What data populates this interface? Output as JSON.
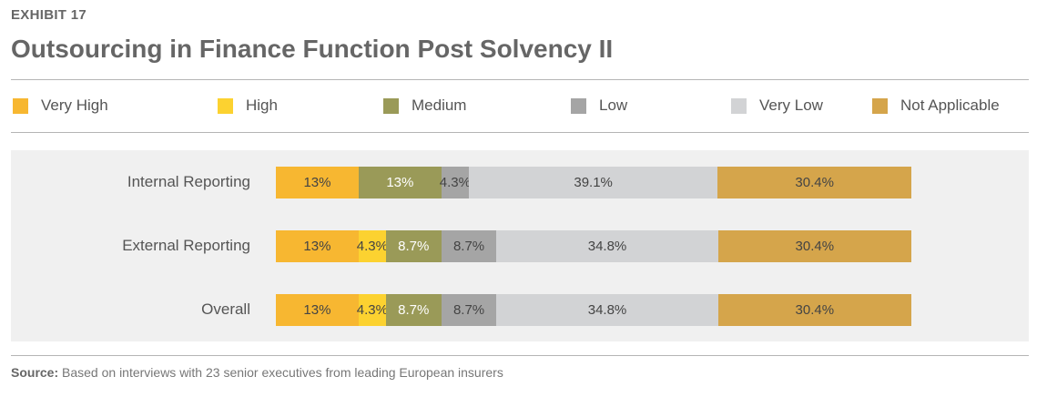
{
  "exhibit": "EXHIBIT 17",
  "chart_data": {
    "type": "bar",
    "orientation": "horizontal",
    "stacked": true,
    "title": "Outsourcing in Finance Function Post Solvency II",
    "categories": [
      "Internal Reporting",
      "External Reporting",
      "Overall"
    ],
    "series": [
      {
        "name": "Very High",
        "color": "#f7b731",
        "values": [
          13,
          13,
          13
        ],
        "labels": [
          "13%",
          "13%",
          "13%"
        ]
      },
      {
        "name": "High",
        "color": "#fcd230",
        "values": [
          0,
          4.3,
          4.3
        ],
        "labels": [
          "",
          "4.3%",
          "4.3%"
        ]
      },
      {
        "name": "Medium",
        "color": "#9a9a58",
        "values": [
          13,
          8.7,
          8.7
        ],
        "labels": [
          "13%",
          "8.7%",
          "8.7%"
        ]
      },
      {
        "name": "Low",
        "color": "#a5a5a5",
        "values": [
          4.3,
          8.7,
          8.7
        ],
        "labels": [
          "4.3%",
          "8.7%",
          "8.7%"
        ]
      },
      {
        "name": "Very Low",
        "color": "#d2d3d5",
        "values": [
          39.1,
          34.8,
          34.8
        ],
        "labels": [
          "39.1%",
          "34.8%",
          "34.8%"
        ]
      },
      {
        "name": "Not Applicable",
        "color": "#d5a54b",
        "values": [
          30.4,
          30.4,
          30.4
        ],
        "labels": [
          "30.4%",
          "30.4%",
          "30.4%"
        ]
      }
    ],
    "xlim": [
      0,
      100
    ],
    "legend": "top"
  },
  "source": {
    "label": "Source:",
    "text": " Based on interviews with 23 senior executives from leading European insurers"
  }
}
